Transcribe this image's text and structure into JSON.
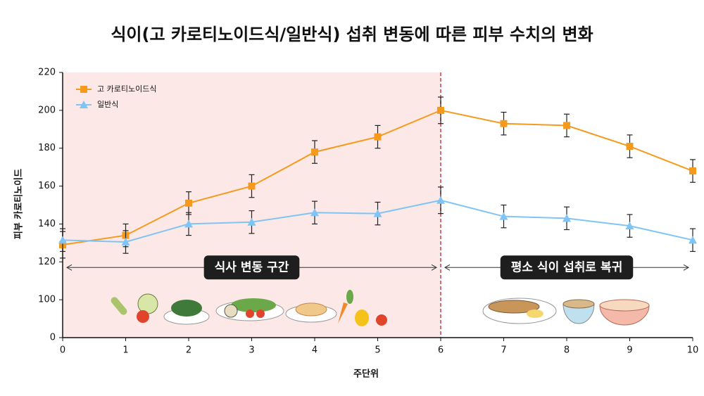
{
  "chart_data": {
    "type": "line",
    "title": "식이(고 카로티노이드식/일반식) 섭취 변동에 따른 피부 수치의 변화",
    "x_label": "주단위",
    "y_label": "피부 카로티노이드",
    "x": [
      0,
      1,
      2,
      3,
      4,
      5,
      6,
      7,
      8,
      9,
      10
    ],
    "xlim": [
      0,
      10
    ],
    "xticks": [
      0,
      1,
      2,
      3,
      4,
      5,
      6,
      7,
      8,
      9,
      10
    ],
    "ylim": [
      0,
      220
    ],
    "yticks": [
      0,
      100,
      120,
      140,
      160,
      180,
      200,
      220
    ],
    "legend": "upper left",
    "series": [
      {
        "name": "고 카로티노이드식",
        "color": "#f59a1c",
        "marker": "square",
        "values": [
          129,
          134,
          151,
          160,
          178,
          186,
          200,
          193,
          192,
          181,
          168
        ],
        "errors": [
          7,
          6,
          6,
          6,
          6,
          6,
          7,
          6,
          6,
          6,
          6
        ]
      },
      {
        "name": "일반식",
        "color": "#7fc4f5",
        "marker": "triangle",
        "values": [
          131.5,
          130.5,
          140,
          141,
          146,
          145.5,
          152.5,
          144,
          143,
          139,
          131.5
        ],
        "errors": [
          6,
          6,
          6,
          6,
          6,
          6,
          7,
          6,
          6,
          6,
          6
        ]
      }
    ],
    "shaded_range": [
      0,
      6
    ],
    "shade_color": "#fde8e8",
    "divider_x": 6,
    "divider_color": "#e0393e",
    "annotations": [
      {
        "text": "식사 변동 구간",
        "x": [
          0,
          6
        ],
        "y": 120
      },
      {
        "text": "평소 식이 섭취로 복귀",
        "x": [
          6,
          10
        ],
        "y": 120
      }
    ]
  }
}
